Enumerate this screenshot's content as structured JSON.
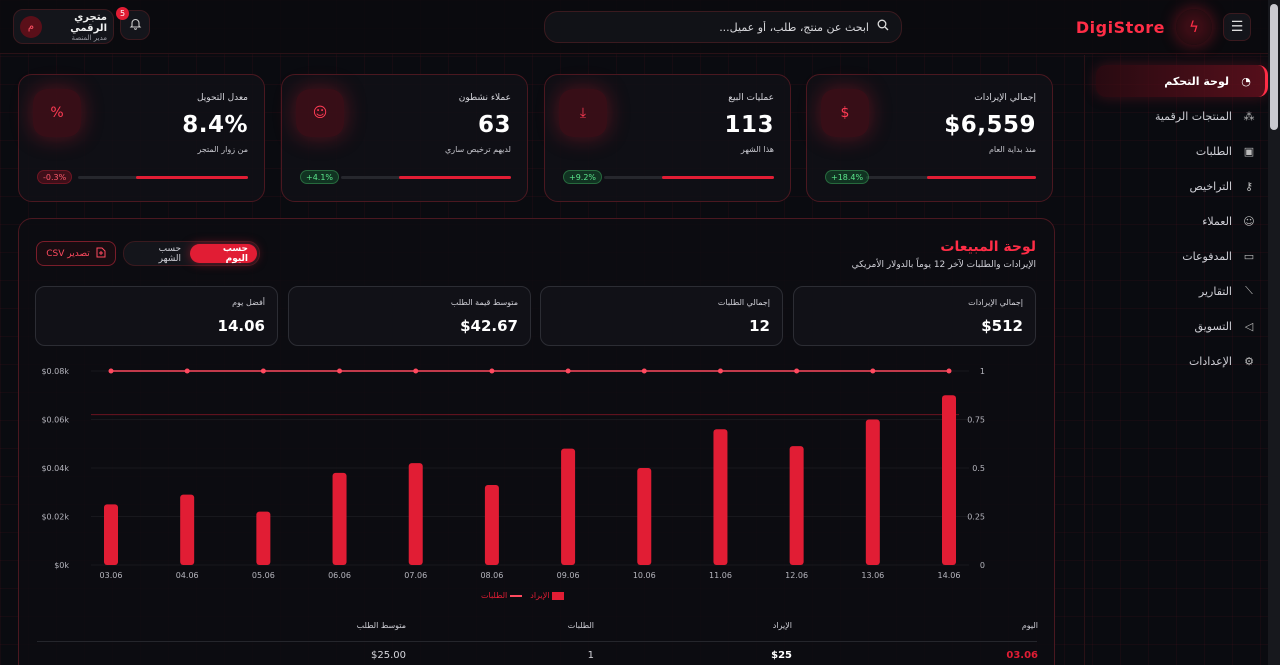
{
  "brand": {
    "name": "DigiStore"
  },
  "search": {
    "placeholder": "ابحث عن منتج، طلب، أو عميل..."
  },
  "notifications": {
    "count": "5"
  },
  "user": {
    "name": "متجري الرقمي",
    "role": "مدير المنصة",
    "initial": "م"
  },
  "sidebar": {
    "items": [
      {
        "label": "لوحة التحكم",
        "icon": "gauge-icon",
        "active": true
      },
      {
        "label": "المنتجات الرقمية",
        "icon": "boxes-icon"
      },
      {
        "label": "الطلبات",
        "icon": "shopping-bag-icon"
      },
      {
        "label": "التراخيص",
        "icon": "key-icon"
      },
      {
        "label": "العملاء",
        "icon": "users-icon"
      },
      {
        "label": "المدفوعات",
        "icon": "credit-card-icon"
      },
      {
        "label": "التقارير",
        "icon": "line-chart-icon"
      },
      {
        "label": "التسويق",
        "icon": "megaphone-icon"
      },
      {
        "label": "الإعدادات",
        "icon": "settings-icon"
      }
    ]
  },
  "kpis": [
    {
      "label": "إجمالي الإيرادات",
      "value": "$6,559",
      "sub": "منذ بداية العام",
      "badge": "+18.4%",
      "trend": "up",
      "progress": 0.64,
      "icon": "dollar-icon"
    },
    {
      "label": "عمليات البيع",
      "value": "113",
      "sub": "هذا الشهر",
      "badge": "+9.2%",
      "trend": "up",
      "progress": 0.66,
      "icon": "download-icon"
    },
    {
      "label": "عملاء نشطون",
      "value": "63",
      "sub": "لديهم ترخيص ساري",
      "badge": "+4.1%",
      "trend": "up",
      "progress": 0.66,
      "icon": "users-icon"
    },
    {
      "label": "معدل التحويل",
      "value": "8.4%",
      "sub": "من زوار المتجر",
      "badge": "-0.3%",
      "trend": "down",
      "progress": 0.66,
      "icon": "percent-icon"
    }
  ],
  "sales": {
    "title": "لوحة المبيعات",
    "subtitle": "الإيرادات والطلبات لآخر 12 يوماً بالدولار الأمريكي",
    "toggle": {
      "daily": "حسب اليوم",
      "monthly": "حسب الشهر"
    },
    "export_label": "تصدير CSV",
    "stats": [
      {
        "label": "إجمالي الإيرادات",
        "value": "$512"
      },
      {
        "label": "إجمالي الطلبات",
        "value": "12"
      },
      {
        "label": "متوسط قيمة الطلب",
        "value": "$42.67"
      },
      {
        "label": "أفضل يوم",
        "value": "14.06"
      }
    ],
    "legend": {
      "revenue": "الإيراد",
      "orders": "الطلبات"
    },
    "table": {
      "headers": {
        "day": "اليوم",
        "revenue": "الإيراد",
        "orders": "الطلبات",
        "avg": "متوسط الطلب"
      },
      "rows": [
        {
          "day": "03.06",
          "revenue": "$25",
          "orders": "1",
          "avg": "$25.00"
        }
      ]
    }
  },
  "chart_data": {
    "type": "bar",
    "categories": [
      "03.06",
      "04.06",
      "05.06",
      "06.06",
      "07.06",
      "08.06",
      "09.06",
      "10.06",
      "11.06",
      "12.06",
      "13.06",
      "14.06"
    ],
    "series": [
      {
        "name": "الإيراد",
        "type": "bar",
        "axis": "left",
        "values": [
          25,
          29,
          22,
          38,
          42,
          33,
          48,
          40,
          56,
          49,
          60,
          70
        ]
      },
      {
        "name": "الطلبات",
        "type": "line",
        "axis": "right",
        "values": [
          1,
          1,
          1,
          1,
          1,
          1,
          1,
          1,
          1,
          1,
          1,
          1
        ]
      }
    ],
    "y_left_ticks": [
      "$0k",
      "$0.02k",
      "$0.04k",
      "$0.06k",
      "$0.08k"
    ],
    "y_left_lim": [
      0,
      80
    ],
    "y_right_ticks": [
      "0",
      "0.25",
      "0.5",
      "0.75",
      "1"
    ],
    "y_right_lim": [
      0,
      1
    ],
    "reference_line": 62,
    "grid": true,
    "legend_position": "bottom-center"
  },
  "colors": {
    "accent": "#e11d34",
    "background": "#0a0b10"
  }
}
